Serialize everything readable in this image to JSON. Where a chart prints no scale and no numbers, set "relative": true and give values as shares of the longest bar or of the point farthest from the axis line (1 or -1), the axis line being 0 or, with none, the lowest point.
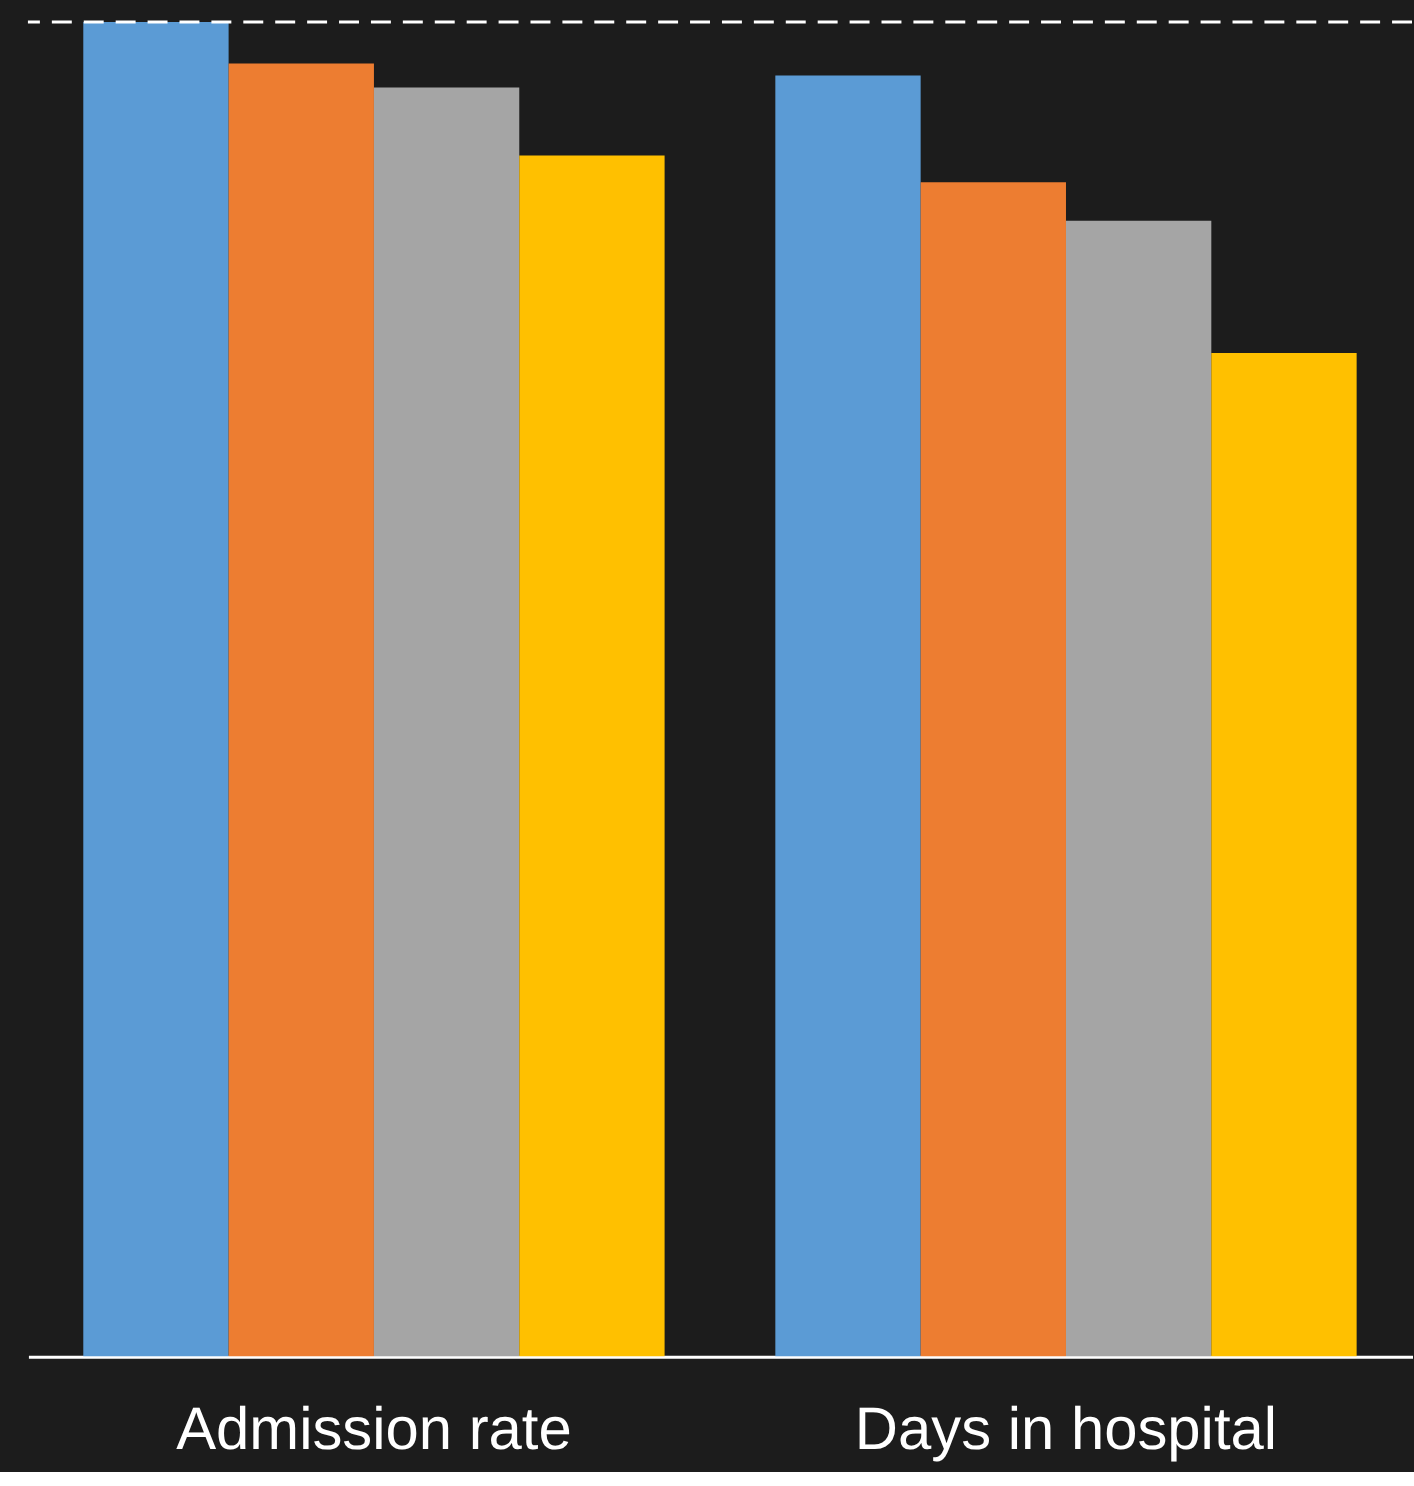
{
  "chart_data": {
    "type": "bar",
    "relative": true,
    "categories": [
      "Admission rate",
      "Days in hospital"
    ],
    "series": [
      {
        "color": "#5b9bd5",
        "values": [
          1.0,
          0.96
        ]
      },
      {
        "color": "#ed7d31",
        "values": [
          0.969,
          0.88
        ]
      },
      {
        "color": "#a5a5a5",
        "values": [
          0.951,
          0.851
        ]
      },
      {
        "color": "#ffc000",
        "values": [
          0.9,
          0.752
        ]
      }
    ],
    "ref_lines": [
      {
        "axis": "y",
        "value": 1.0,
        "color": "#ffffff",
        "line_style": "dashed"
      }
    ],
    "legend": false,
    "grid": false
  }
}
